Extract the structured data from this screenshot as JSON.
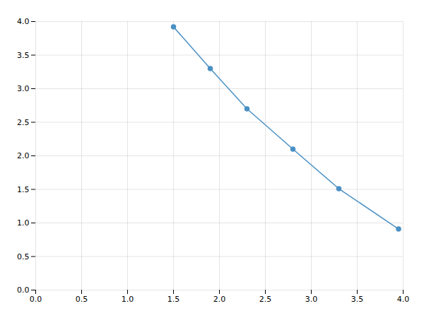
{
  "chart_data": {
    "type": "line",
    "x": [
      1.5,
      1.9,
      2.3,
      2.8,
      3.3,
      3.95
    ],
    "values": [
      3.92,
      3.3,
      2.7,
      2.1,
      1.51,
      0.91
    ],
    "color": "#4a90c4",
    "marker": "circle",
    "xlim": [
      0.0,
      4.0
    ],
    "ylim": [
      0.0,
      4.0
    ],
    "xticks": [
      {
        "value": 0,
        "label": "0.0"
      },
      0.5,
      {
        "value": 1,
        "label": "1.0"
      },
      1.5,
      {
        "value": 2,
        "label": "2.0"
      },
      2.5,
      {
        "value": 3,
        "label": "3.0"
      },
      3.5,
      {
        "value": 4,
        "label": "4.0"
      }
    ],
    "yticks": [
      {
        "value": 0,
        "label": "0.0"
      },
      0.5,
      {
        "value": 1,
        "label": "1.0"
      },
      1.5,
      {
        "value": 2,
        "label": "2.0"
      },
      2.5,
      {
        "value": 3,
        "label": "3.0"
      },
      3.5,
      {
        "value": 4,
        "label": "4.0"
      }
    ],
    "grid": true
  }
}
